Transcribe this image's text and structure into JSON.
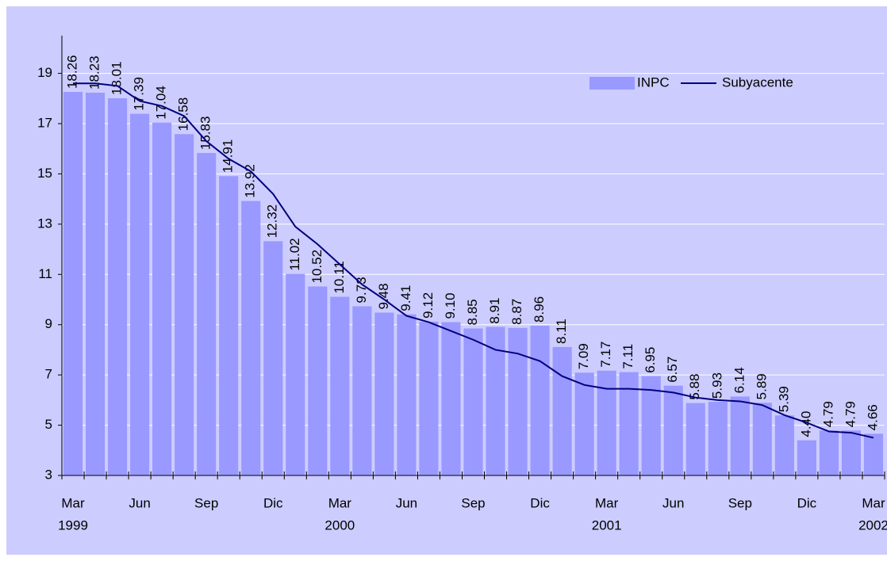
{
  "chart_data": {
    "type": "bar_line",
    "categories": [
      "Mar",
      null,
      null,
      "Jun",
      null,
      null,
      "Sep",
      null,
      null,
      "Dic",
      null,
      null,
      "Mar",
      null,
      null,
      "Jun",
      null,
      null,
      "Sep",
      null,
      null,
      "Dic",
      null,
      null,
      "Mar",
      null,
      null,
      "Jun",
      null,
      null,
      "Sep",
      null,
      null,
      "Dic",
      null,
      null,
      "Mar"
    ],
    "year_labels": [
      "1999",
      null,
      null,
      null,
      null,
      null,
      null,
      null,
      null,
      null,
      null,
      null,
      "2000",
      null,
      null,
      null,
      null,
      null,
      null,
      null,
      null,
      null,
      null,
      null,
      "2001",
      null,
      null,
      null,
      null,
      null,
      null,
      null,
      null,
      null,
      null,
      null,
      "2002"
    ],
    "series": [
      {
        "name": "INPC",
        "type": "bar",
        "color": "#9999ff",
        "values": [
          18.26,
          18.23,
          18.01,
          17.39,
          17.04,
          16.58,
          15.83,
          14.91,
          13.92,
          12.32,
          11.02,
          10.52,
          10.11,
          9.73,
          9.48,
          9.41,
          9.12,
          9.1,
          8.85,
          8.91,
          8.87,
          8.96,
          8.11,
          7.09,
          7.17,
          7.11,
          6.95,
          6.57,
          5.88,
          5.93,
          6.14,
          5.89,
          5.39,
          4.4,
          4.79,
          4.79,
          4.66
        ],
        "value_labels": [
          "18.26",
          "18.23",
          "18.01",
          "17.39",
          "17.04",
          "16.58",
          "15.83",
          "14.91",
          "13.92",
          "12.32",
          "11.02",
          "10.52",
          "10.11",
          "9.73",
          "9.48",
          "9.41",
          "9.12",
          "9.10",
          "8.85",
          "8.91",
          "8.87",
          "8.96",
          "8.11",
          "7.09",
          "7.17",
          "7.11",
          "6.95",
          "6.57",
          "5.88",
          "5.93",
          "6.14",
          "5.89",
          "5.39",
          "4.40",
          "4.79",
          "4.79",
          "4.66"
        ]
      },
      {
        "name": "Subyacente",
        "type": "line",
        "color": "#000080",
        "values": [
          18.6,
          18.6,
          18.5,
          17.9,
          17.7,
          17.3,
          16.3,
          15.6,
          15.1,
          14.2,
          12.9,
          12.2,
          11.4,
          10.6,
          10.0,
          9.35,
          9.1,
          8.75,
          8.4,
          8.0,
          7.85,
          7.55,
          6.95,
          6.6,
          6.45,
          6.45,
          6.4,
          6.3,
          6.1,
          6.0,
          5.95,
          5.8,
          5.4,
          5.1,
          4.75,
          4.7,
          4.5
        ]
      }
    ],
    "ylim": [
      3,
      20.5
    ],
    "yticks": [
      3,
      5,
      7,
      9,
      11,
      13,
      15,
      17,
      19
    ],
    "grid": true,
    "legend": "upper right"
  }
}
